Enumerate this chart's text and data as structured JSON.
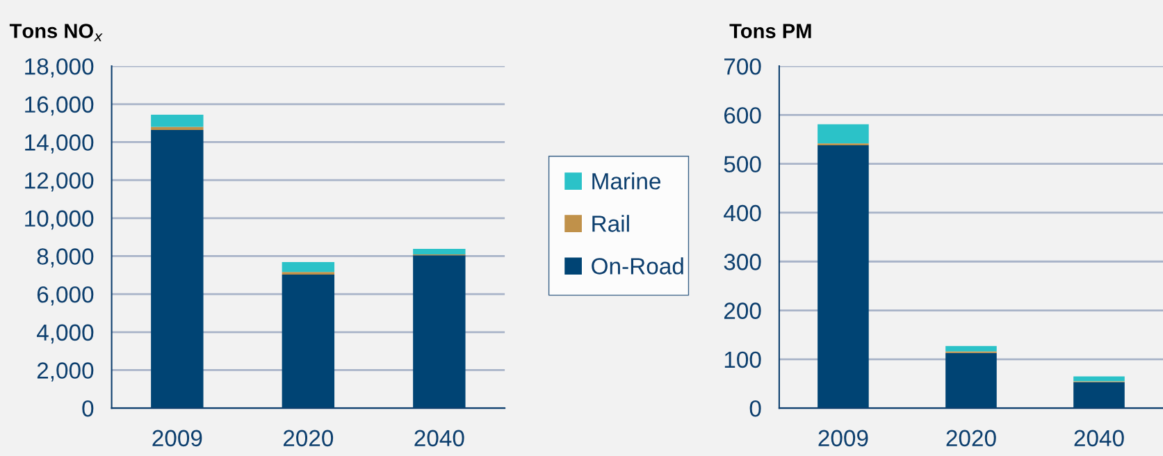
{
  "chart_data": [
    {
      "type": "bar",
      "title": "Tons NO$_{x}$",
      "categories": [
        "2009",
        "2020",
        "2040"
      ],
      "stacked": true,
      "legend": "right",
      "grid": "y",
      "series": [
        {
          "name": "On-Road",
          "color": "#004474",
          "values": [
            14640,
            7030,
            8040
          ]
        },
        {
          "name": "Rail",
          "color": "#c0914a",
          "values": [
            160,
            140,
            50
          ]
        },
        {
          "name": "Marine",
          "color": "#2bc2c8",
          "values": [
            640,
            520,
            290
          ]
        }
      ],
      "ylim": [
        0,
        18000
      ],
      "yticks": [
        {
          "value": 0,
          "label": "0"
        },
        {
          "value": 2000,
          "label": "2,000"
        },
        {
          "value": 4000,
          "label": "4,000"
        },
        {
          "value": 6000,
          "label": "6,000"
        },
        {
          "value": 8000,
          "label": "8,000"
        },
        {
          "value": 10000,
          "label": "10,000"
        },
        {
          "value": 12000,
          "label": "12,000"
        },
        {
          "value": 14000,
          "label": "14,000"
        },
        {
          "value": 16000,
          "label": "16,000"
        },
        {
          "value": 18000,
          "label": "18,000"
        }
      ]
    },
    {
      "type": "bar",
      "title": "Tons PM",
      "categories": [
        "2009",
        "2020",
        "2040"
      ],
      "stacked": true,
      "grid": "y",
      "series": [
        {
          "color": "#004474",
          "values": [
            538,
            113,
            53
          ]
        },
        {
          "color": "#c0914a",
          "values": [
            4,
            3,
            2
          ]
        },
        {
          "color": "#2bc2c8",
          "values": [
            39,
            11,
            10
          ]
        }
      ],
      "ylim": [
        0,
        700
      ],
      "yticks": [
        0,
        100,
        200,
        300,
        400,
        500,
        600,
        700
      ]
    }
  ]
}
